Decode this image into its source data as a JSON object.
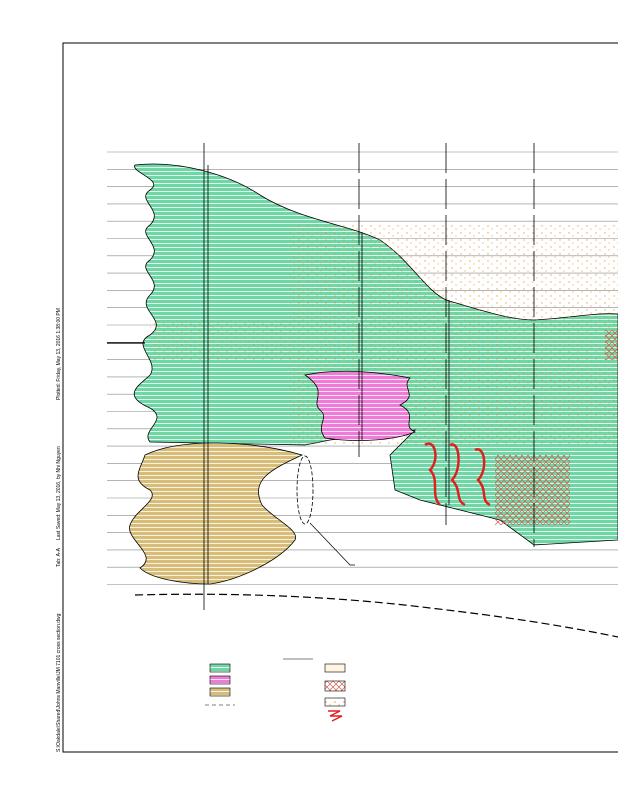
{
  "footer": {
    "file_path": "S:\\Oakdale\\Shared\\Johns Manville\\JM 7101 cross section.dwg",
    "tab": "Tab: A-A",
    "saved": "Last Saved: May 13, 2016, by Nhi Nguyen",
    "plotted": "Plotted: Friday, May 13, 2016 1:38:00 PM"
  }
}
